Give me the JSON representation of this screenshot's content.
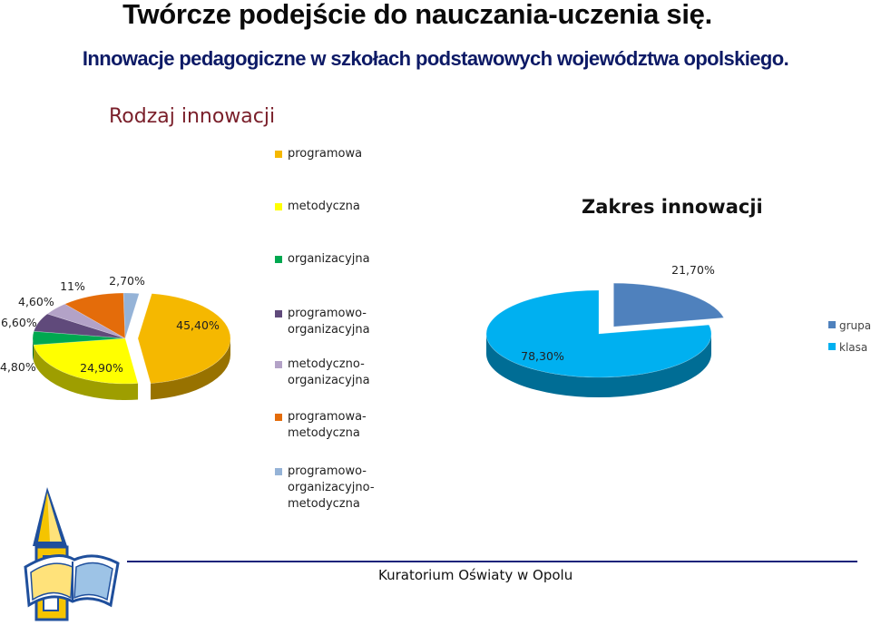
{
  "header": {
    "title": "Twórcze podejście do nauczania-uczenia się.",
    "subtitle": "Innowacje pedagogiczne w szkołach podstawowych województwa opolskiego."
  },
  "chart_data": [
    {
      "type": "pie",
      "title": "Rodzaj innowacji",
      "legend_position": "middle",
      "categories": [
        "programowa",
        "metodyczna",
        "organizacyjna",
        "programowo-organizacyjna",
        "metodyczno-organizacyjna",
        "programowa-metodyczna",
        "programowo-organizacyjno-metodyczna"
      ],
      "legend_lines": [
        [
          "programowa"
        ],
        [
          "metodyczna"
        ],
        [
          "organizacyjna"
        ],
        [
          "programowo-",
          "organizacyjna"
        ],
        [
          "metodyczno-",
          "organizacyjna"
        ],
        [
          "programowa-",
          "metodyczna"
        ],
        [
          "programowo-",
          "organizacyjno-",
          "metodyczna"
        ]
      ],
      "values": [
        45.4,
        24.9,
        4.8,
        6.6,
        4.6,
        11,
        2.7
      ],
      "labels": [
        "45,40%",
        "24,90%",
        "4,80%",
        "6,60%",
        "4,60%",
        "11%",
        "2,70%"
      ],
      "colors": [
        "#f5b800",
        "#ffff00",
        "#00a850",
        "#604a7b",
        "#b3a2c7",
        "#e46c0a",
        "#95b3d7"
      ],
      "exploded": [
        0
      ]
    },
    {
      "type": "pie",
      "title": "Zakres innowacji",
      "legend_position": "right",
      "categories": [
        "grupa",
        "klasa"
      ],
      "values": [
        21.7,
        78.3
      ],
      "labels": [
        "21,70%",
        "78,30%"
      ],
      "colors": [
        "#4f81bd",
        "#00b0f0"
      ],
      "exploded": [
        0
      ]
    }
  ],
  "footer": {
    "text": "Kuratorium Oświaty w Opolu"
  },
  "icons": {
    "logo": "kuratorium-book-tower-logo"
  }
}
